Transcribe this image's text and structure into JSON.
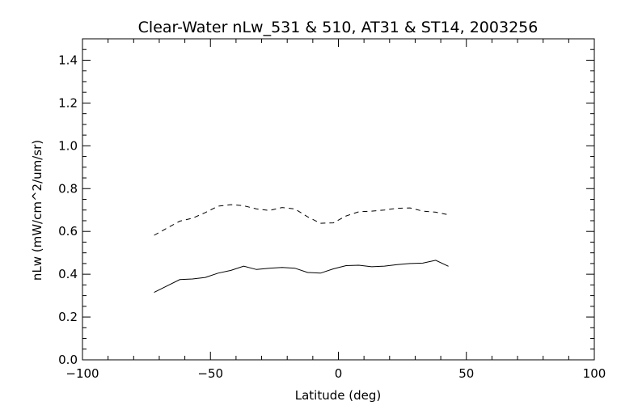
{
  "chart_data": {
    "type": "line",
    "title": "Clear-Water nLw_531 & 510, AT31 & ST14, 2003256",
    "xlabel": "Latitude (deg)",
    "ylabel": "nLw (mW/cm^2/um/sr)",
    "xlim": [
      -100,
      100
    ],
    "ylim": [
      0.0,
      1.5
    ],
    "xticks": [
      "-100",
      "-50",
      "0",
      "50",
      "100"
    ],
    "yticks": [
      "0.0",
      "0.2",
      "0.4",
      "0.6",
      "0.8",
      "1.0",
      "1.2",
      "1.4"
    ],
    "grid": false,
    "series": [
      {
        "line_style": "solid",
        "color": "#000000",
        "x": [
          -72,
          -67,
          -62,
          -57,
          -52,
          -47,
          -42,
          -37,
          -32,
          -27,
          -22,
          -17,
          -12,
          -7,
          -2,
          3,
          8,
          13,
          18,
          23,
          28,
          33,
          38,
          43
        ],
        "y": [
          0.315,
          0.345,
          0.375,
          0.378,
          0.385,
          0.405,
          0.418,
          0.438,
          0.422,
          0.428,
          0.432,
          0.428,
          0.408,
          0.405,
          0.425,
          0.44,
          0.442,
          0.435,
          0.438,
          0.445,
          0.45,
          0.452,
          0.465,
          0.437
        ]
      },
      {
        "line_style": "dashed",
        "color": "#000000",
        "x": [
          -72,
          -67,
          -62,
          -57,
          -52,
          -47,
          -42,
          -37,
          -32,
          -27,
          -22,
          -17,
          -12,
          -7,
          -2,
          3,
          8,
          13,
          18,
          23,
          28,
          33,
          38,
          43
        ],
        "y": [
          0.582,
          0.615,
          0.648,
          0.662,
          0.688,
          0.718,
          0.725,
          0.72,
          0.705,
          0.698,
          0.712,
          0.705,
          0.668,
          0.638,
          0.64,
          0.672,
          0.692,
          0.695,
          0.7,
          0.708,
          0.71,
          0.695,
          0.69,
          0.678
        ]
      }
    ]
  }
}
